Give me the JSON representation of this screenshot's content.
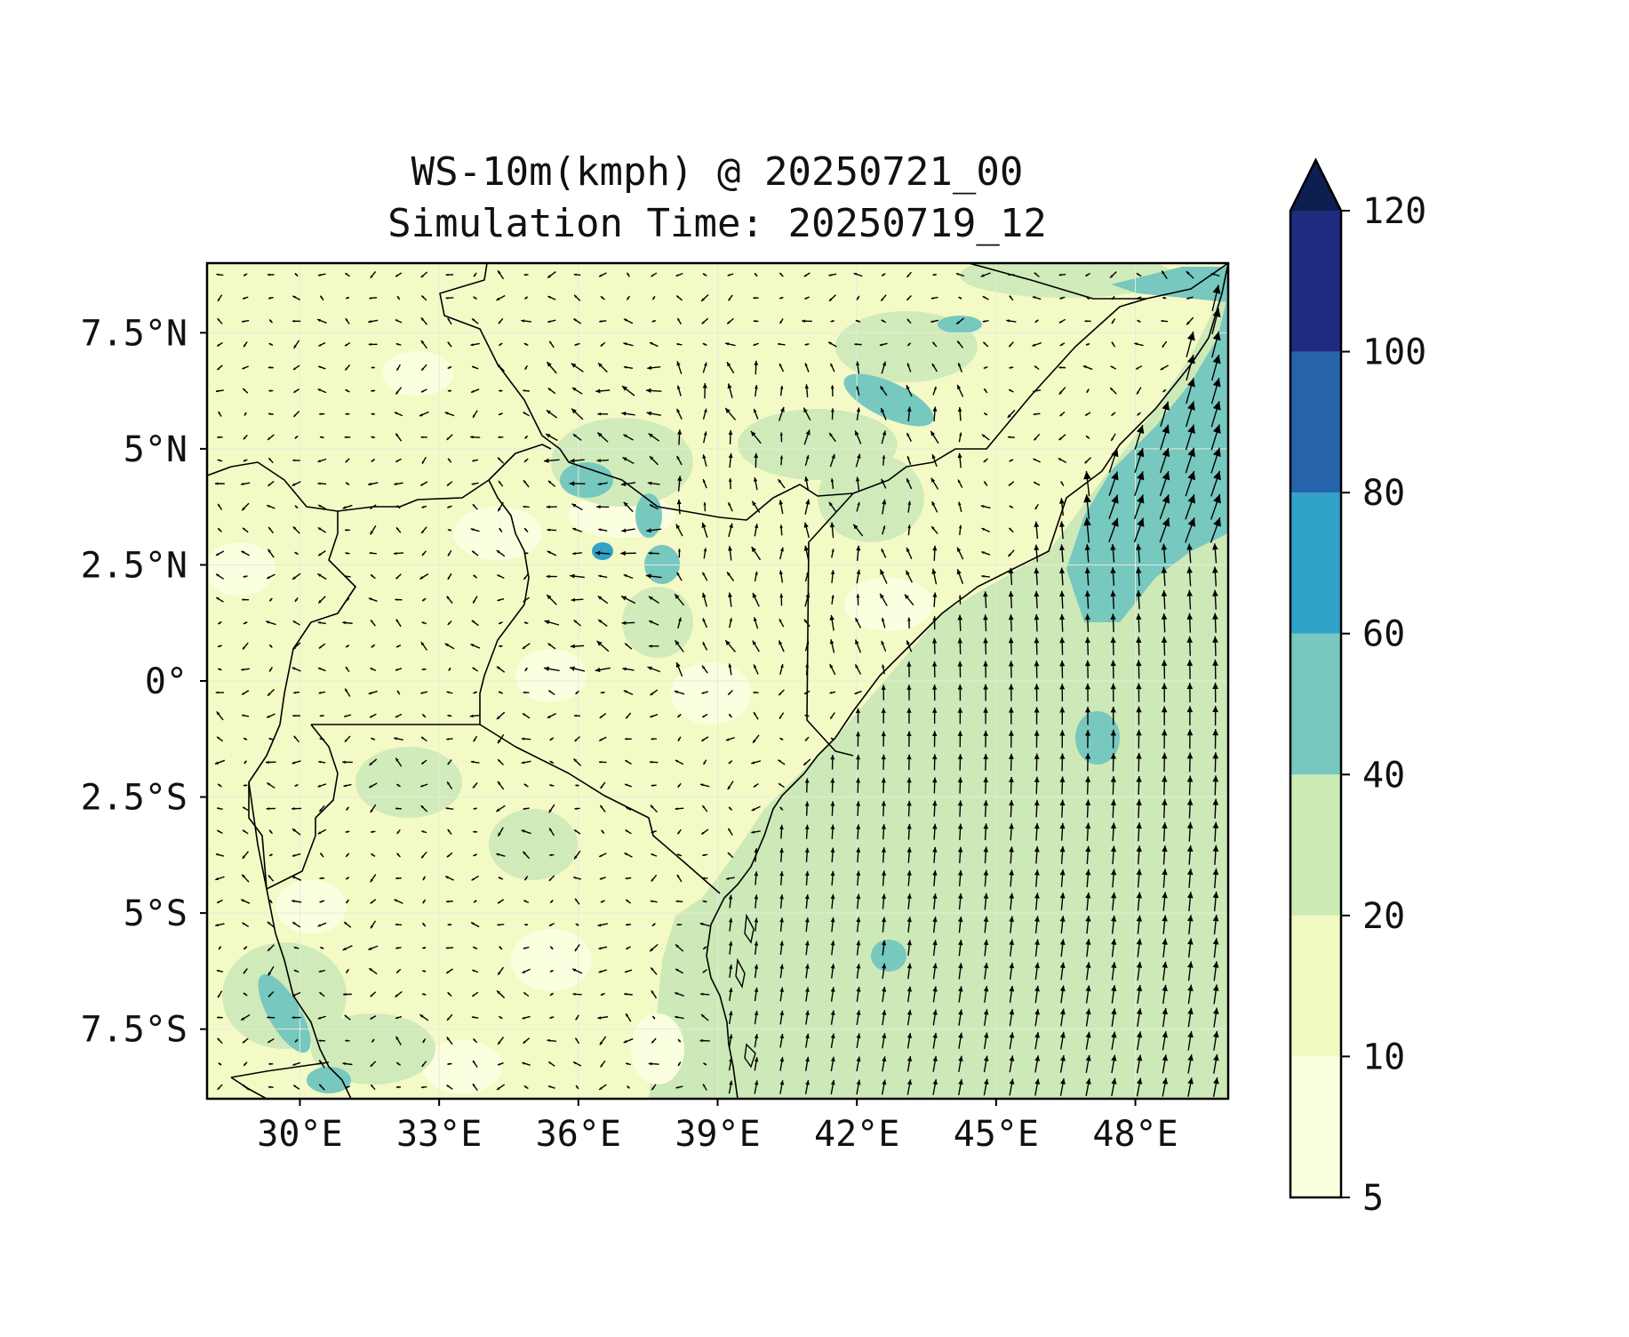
{
  "title": {
    "line1": "WS-10m(kmph) @ 20250721_00",
    "line2": "Simulation Time: 20250719_12"
  },
  "map": {
    "region": "East Africa",
    "lon_range": [
      28,
      50
    ],
    "lat_range": [
      -9,
      9
    ],
    "x_ticks": [
      "30°E",
      "33°E",
      "36°E",
      "39°E",
      "42°E",
      "45°E",
      "48°E"
    ],
    "x_tick_values": [
      30,
      33,
      36,
      39,
      42,
      45,
      48
    ],
    "y_ticks": [
      "7.5°N",
      "5°N",
      "2.5°N",
      "0°",
      "2.5°S",
      "5°S",
      "7.5°S"
    ],
    "y_tick_values": [
      7.5,
      5,
      2.5,
      0,
      -2.5,
      -5,
      -7.5
    ],
    "grid": true,
    "vector_field": "10 m wind vectors (arrows)",
    "colors": {
      "land_base": "#f4fac6",
      "ocean_base": "#cde9b8",
      "border": "#000000",
      "arrow": "#000000"
    }
  },
  "colorbar": {
    "labels": [
      "5",
      "10",
      "20",
      "40",
      "60",
      "80",
      "100",
      "120"
    ],
    "levels": [
      5,
      10,
      20,
      40,
      60,
      80,
      100,
      120
    ],
    "colors": [
      "#fcfee0",
      "#f0f9c0",
      "#cdebb4",
      "#77c8be",
      "#31a2c8",
      "#2563aa",
      "#1e2b7e"
    ],
    "extend_color": "#0d1e50",
    "extend": "max"
  }
}
